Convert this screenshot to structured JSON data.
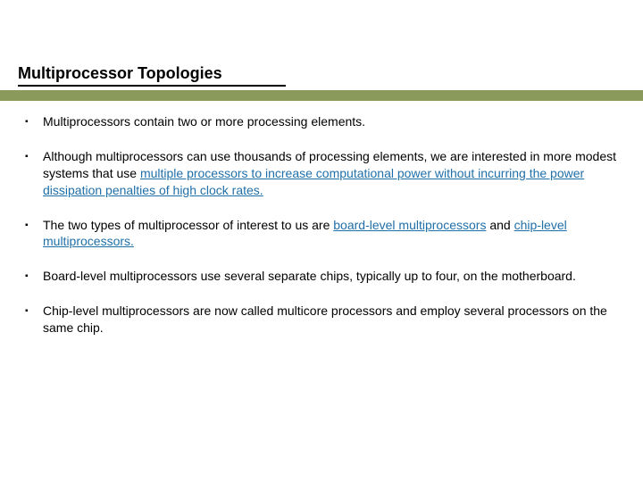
{
  "title": "Multiprocessor Topologies",
  "accent_bar_color": "#8a9a5b",
  "highlight_color": "#1f6fa8",
  "bullets": [
    {
      "pre": "Multiprocessors contain two or more processing elements.",
      "hl1": "",
      "mid": "",
      "hl2": "",
      "post": ""
    },
    {
      "pre": "Although multiprocessors can use thousands of processing elements, we are interested in more modest systems that use ",
      "hl1": "multiple processors to increase computational power without incurring the power dissipation penalties of high clock rates.",
      "mid": "",
      "hl2": "",
      "post": ""
    },
    {
      "pre": "The two types of multiprocessor of interest to us are ",
      "hl1": "board-level multiprocessors",
      "mid": " and ",
      "hl2": "chip-level multiprocessors.",
      "post": ""
    },
    {
      "pre": "Board-level multiprocessors use several separate chips, typically up to four, on the motherboard.",
      "hl1": "",
      "mid": "",
      "hl2": "",
      "post": ""
    },
    {
      "pre": "Chip-level multiprocessors are now called multicore processors and employ several processors on the same chip.",
      "hl1": "",
      "mid": "",
      "hl2": "",
      "post": ""
    }
  ]
}
